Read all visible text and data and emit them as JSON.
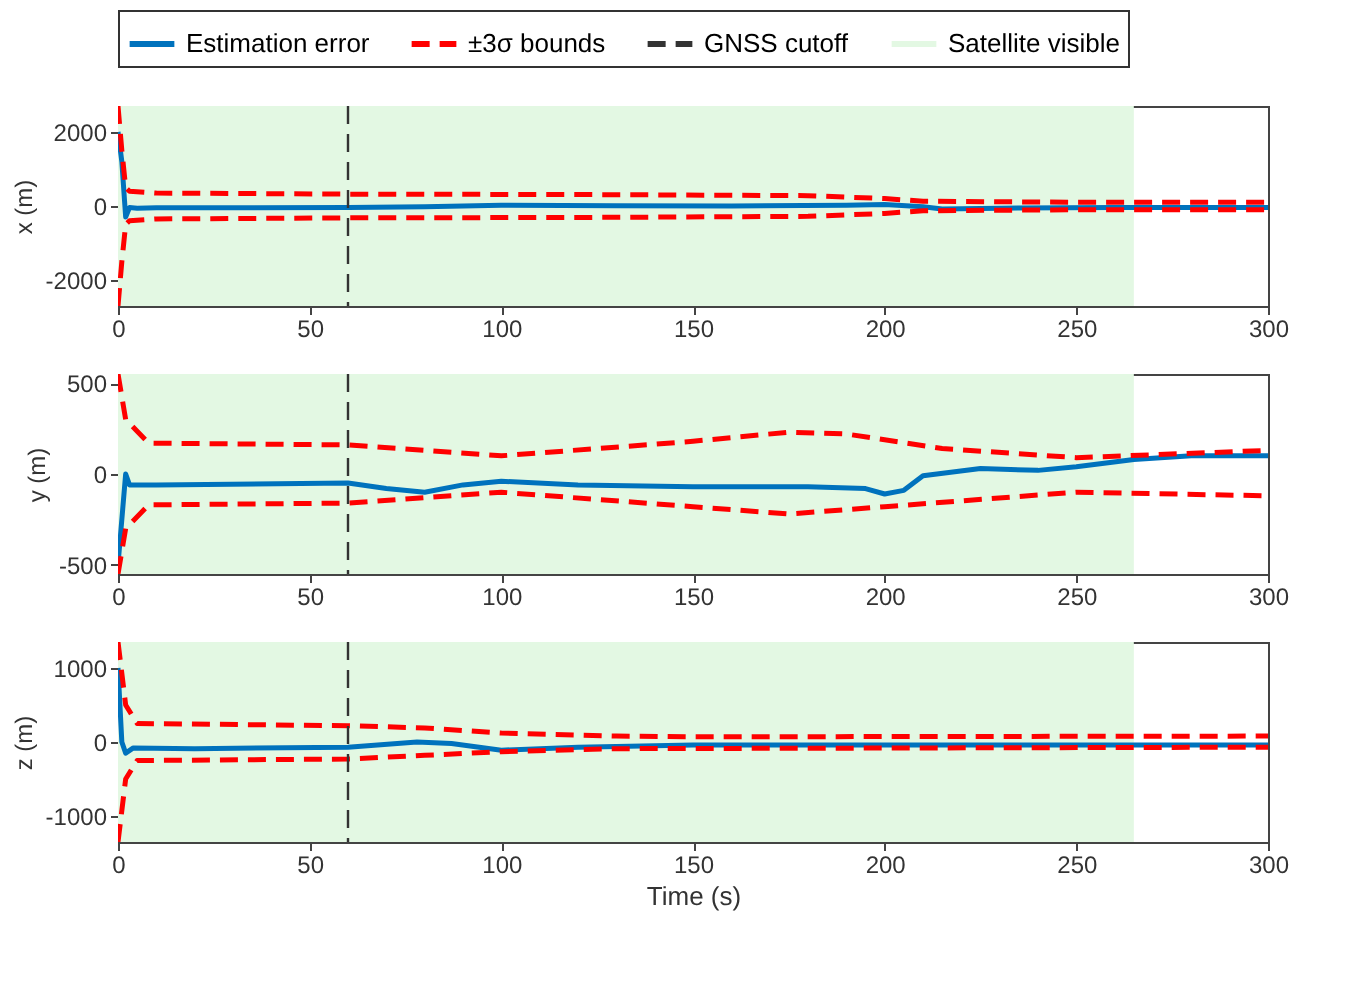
{
  "chart_data": [
    {
      "type": "line",
      "ylabel": "x (m)",
      "xlim": [
        0,
        300
      ],
      "xticks": [
        0,
        50,
        100,
        150,
        200,
        250,
        300
      ],
      "ylim": [
        -2700,
        2700
      ],
      "yticks": [
        -2000,
        0,
        2000
      ],
      "legend": "top",
      "series": [
        {
          "name": "Estimation error",
          "color": "#0072bd",
          "line_style": "solid",
          "x": [
            0,
            1,
            2,
            3,
            5,
            10,
            30,
            60,
            80,
            100,
            130,
            160,
            190,
            200,
            210,
            215,
            230,
            260,
            300
          ],
          "values": [
            2000,
            1200,
            -300,
            -40,
            -60,
            -50,
            -50,
            -40,
            -20,
            20,
            10,
            0,
            20,
            40,
            -20,
            -80,
            -60,
            -40,
            -40
          ]
        },
        {
          "name": "±3σ bounds",
          "color": "#ff0000",
          "line_style": "dashed",
          "x": [
            0,
            1,
            2,
            3,
            10,
            60,
            120,
            180,
            200,
            210,
            250,
            300
          ],
          "values": [
            2700,
            1500,
            500,
            400,
            350,
            320,
            310,
            280,
            200,
            130,
            100,
            100
          ]
        },
        {
          "color": "#ff0000",
          "line_style": "dashed",
          "x": [
            0,
            1,
            2,
            3,
            10,
            60,
            120,
            180,
            200,
            210,
            250,
            300
          ],
          "values": [
            -2700,
            -1500,
            -500,
            -400,
            -350,
            -320,
            -310,
            -280,
            -200,
            -130,
            -100,
            -100
          ]
        }
      ],
      "ref_lines": [
        {
          "axis": "x",
          "value": 60,
          "label": "GNSS cutoff",
          "color": "#333333",
          "line_style": "dashed"
        }
      ],
      "bands": [
        {
          "axis": "x",
          "from": 0,
          "to": 265,
          "label": "Satellite visible",
          "color": "#e3f8e3"
        }
      ]
    },
    {
      "type": "line",
      "ylabel": "y (m)",
      "xlim": [
        0,
        300
      ],
      "xticks": [
        0,
        50,
        100,
        150,
        200,
        250,
        300
      ],
      "ylim": [
        -550,
        550
      ],
      "yticks": [
        -500,
        0,
        500
      ],
      "series": [
        {
          "color": "#0072bd",
          "line_style": "solid",
          "x": [
            0,
            2,
            3,
            10,
            60,
            70,
            80,
            90,
            100,
            120,
            150,
            180,
            195,
            200,
            205,
            210,
            225,
            240,
            250,
            265,
            280,
            300
          ],
          "values": [
            -500,
            0,
            -60,
            -60,
            -50,
            -80,
            -100,
            -60,
            -40,
            -60,
            -70,
            -70,
            -80,
            -110,
            -90,
            -10,
            30,
            20,
            40,
            80,
            100,
            100
          ]
        },
        {
          "color": "#ff0000",
          "line_style": "dashed",
          "x": [
            0,
            2,
            8,
            60,
            100,
            150,
            175,
            190,
            215,
            250,
            300
          ],
          "values": [
            550,
            300,
            170,
            160,
            100,
            180,
            230,
            220,
            140,
            90,
            130
          ]
        },
        {
          "color": "#ff0000",
          "line_style": "dashed",
          "x": [
            0,
            2,
            8,
            60,
            100,
            150,
            175,
            200,
            250,
            300
          ],
          "values": [
            -550,
            -300,
            -170,
            -160,
            -100,
            -180,
            -220,
            -180,
            -100,
            -120
          ]
        }
      ],
      "ref_lines": [
        {
          "axis": "x",
          "value": 60,
          "color": "#333333",
          "line_style": "dashed"
        }
      ],
      "bands": [
        {
          "axis": "x",
          "from": 0,
          "to": 265,
          "color": "#e3f8e3"
        }
      ]
    },
    {
      "type": "line",
      "xlabel": "Time (s)",
      "ylabel": "z (m)",
      "xlim": [
        0,
        300
      ],
      "xticks": [
        0,
        50,
        100,
        150,
        200,
        250,
        300
      ],
      "ylim": [
        -1350,
        1350
      ],
      "yticks": [
        -1000,
        0,
        1000
      ],
      "series": [
        {
          "color": "#0072bd",
          "line_style": "solid",
          "x": [
            0,
            1,
            2,
            4,
            20,
            60,
            78,
            87,
            100,
            120,
            150,
            300
          ],
          "values": [
            1000,
            0,
            -150,
            -80,
            -90,
            -70,
            0,
            -20,
            -110,
            -70,
            -40,
            -40
          ]
        },
        {
          "color": "#ff0000",
          "line_style": "dashed",
          "x": [
            0,
            2,
            5,
            60,
            80,
            100,
            130,
            150,
            300
          ],
          "values": [
            1350,
            500,
            250,
            220,
            190,
            120,
            80,
            70,
            80
          ]
        },
        {
          "color": "#ff0000",
          "line_style": "dashed",
          "x": [
            0,
            2,
            5,
            60,
            80,
            100,
            130,
            300
          ],
          "values": [
            -1350,
            -500,
            -250,
            -230,
            -180,
            -130,
            -90,
            -70
          ]
        }
      ],
      "ref_lines": [
        {
          "axis": "x",
          "value": 60,
          "color": "#333333",
          "line_style": "dashed"
        }
      ],
      "bands": [
        {
          "axis": "x",
          "from": 0,
          "to": 265,
          "color": "#e3f8e3"
        }
      ]
    }
  ]
}
